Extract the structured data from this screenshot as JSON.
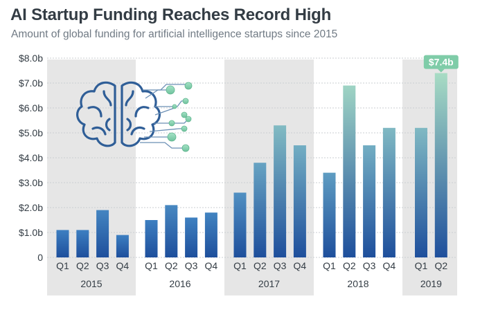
{
  "header": {
    "title": "AI Startup Funding Reaches Record High",
    "subtitle": "Amount of global funding for artificial intelligence startups since 2015"
  },
  "chart_data": {
    "type": "bar",
    "title": "AI Startup Funding Reaches Record High",
    "subtitle": "Amount of global funding for artificial intelligence startups since 2015",
    "categories": [
      "Q1",
      "Q2",
      "Q3",
      "Q4",
      "Q1",
      "Q2",
      "Q3",
      "Q4",
      "Q1",
      "Q2",
      "Q3",
      "Q4",
      "Q1",
      "Q2",
      "Q3",
      "Q4",
      "Q1",
      "Q2"
    ],
    "years": [
      "2015",
      "2016",
      "2017",
      "2018",
      "2019"
    ],
    "year_groups": [
      {
        "year": "2015",
        "quarters": [
          "Q1",
          "Q2",
          "Q3",
          "Q4"
        ]
      },
      {
        "year": "2016",
        "quarters": [
          "Q1",
          "Q2",
          "Q3",
          "Q4"
        ]
      },
      {
        "year": "2017",
        "quarters": [
          "Q1",
          "Q2",
          "Q3",
          "Q4"
        ]
      },
      {
        "year": "2018",
        "quarters": [
          "Q1",
          "Q2",
          "Q3",
          "Q4"
        ]
      },
      {
        "year": "2019",
        "quarters": [
          "Q1",
          "Q2"
        ]
      }
    ],
    "series": [
      {
        "values": [
          1.1,
          1.1,
          1.9,
          0.9,
          1.5,
          2.1,
          1.6,
          1.8,
          2.6,
          3.8,
          5.3,
          4.5,
          3.4,
          6.9,
          4.5,
          5.2,
          5.2,
          7.4
        ]
      }
    ],
    "ylim": [
      0,
      8
    ],
    "yticks": [
      {
        "value": 0,
        "label": "0"
      },
      {
        "value": 1,
        "label": "$1.0b"
      },
      {
        "value": 2,
        "label": "$2.0b"
      },
      {
        "value": 3,
        "label": "$3.0b"
      },
      {
        "value": 4,
        "label": "$4.0b"
      },
      {
        "value": 5,
        "label": "$5.0b"
      },
      {
        "value": 6,
        "label": "$6.0b"
      },
      {
        "value": 7,
        "label": "$7.0b"
      },
      {
        "value": 8,
        "label": "$8.0b"
      }
    ],
    "annotation": {
      "index": 17,
      "label": "$7.4b"
    },
    "grid": true,
    "colors": {
      "bar_bottom": "#1e4f9c",
      "bar_top_low": "#3d7fc1",
      "bar_top_high": "#a8dcc4",
      "band": "#e6e6e6",
      "grid": "#c9cdd1",
      "callout": "#7fcca8",
      "brain": "#2f5e97",
      "coin": "#7fcca8"
    }
  },
  "decoration": {
    "icon": "brain-money-icon"
  }
}
